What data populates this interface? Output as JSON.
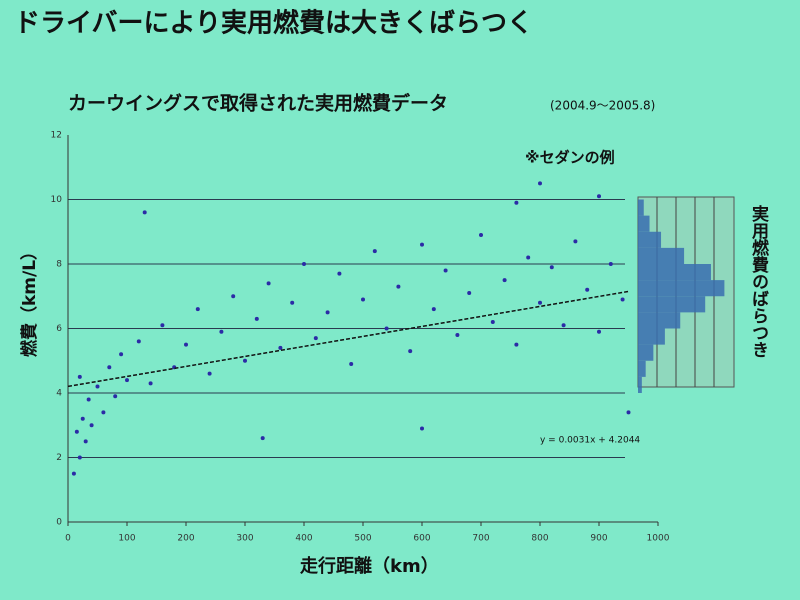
{
  "chart_data": [
    {
      "type": "scatter",
      "title": "ドライバーにより実用燃費は大きくばらつく",
      "subtitle": "カーウイングスで取得された実用燃費データ",
      "period": "(2004.9～2005.8)",
      "note": "※セダンの例",
      "x_label": "走行距離（km）",
      "y_label": "燃費（km/L）",
      "color": "#2b2ba6",
      "xlim": [
        0,
        1000
      ],
      "ylim": [
        0,
        12
      ],
      "xticks": [
        0,
        100,
        200,
        300,
        400,
        500,
        600,
        700,
        800,
        900,
        1000
      ],
      "yticks": [
        0,
        2,
        4,
        6,
        8,
        10,
        12
      ],
      "grid": true,
      "x": [
        10,
        15,
        20,
        25,
        30,
        35,
        40,
        50,
        60,
        70,
        80,
        90,
        100,
        120,
        140,
        160,
        180,
        200,
        220,
        240,
        260,
        280,
        300,
        320,
        340,
        360,
        380,
        400,
        420,
        440,
        460,
        480,
        500,
        520,
        540,
        560,
        580,
        600,
        620,
        640,
        660,
        680,
        700,
        720,
        740,
        760,
        780,
        800,
        820,
        840,
        860,
        880,
        900,
        920,
        940,
        130,
        800,
        950,
        330,
        20,
        760,
        600,
        900
      ],
      "y": [
        1.5,
        2.8,
        2.0,
        3.2,
        2.5,
        3.8,
        3.0,
        4.2,
        3.4,
        4.8,
        3.9,
        5.2,
        4.4,
        5.6,
        4.3,
        6.1,
        4.8,
        5.5,
        6.6,
        4.6,
        5.9,
        7.0,
        5.0,
        6.3,
        7.4,
        5.4,
        6.8,
        8.0,
        5.7,
        6.5,
        7.7,
        4.9,
        6.9,
        8.4,
        6.0,
        7.3,
        5.3,
        8.6,
        6.6,
        7.8,
        5.8,
        7.1,
        8.9,
        6.2,
        7.5,
        5.5,
        8.2,
        6.8,
        7.9,
        6.1,
        8.7,
        7.2,
        5.9,
        8.0,
        6.9,
        9.6,
        10.5,
        3.4,
        2.6,
        4.5,
        9.9,
        2.9,
        10.1
      ],
      "trendline": {
        "slope": 0.0031,
        "intercept": 4.2044,
        "label": "y = 0.0031x + 4.2044",
        "xlim": [
          0,
          950
        ]
      }
    },
    {
      "type": "histogram",
      "title": "実用燃費のばらつき",
      "color": "#3a6fb0",
      "bins": [
        4.0,
        4.5,
        5.0,
        5.5,
        6.0,
        6.5,
        7.0,
        7.5,
        8.0,
        8.5,
        9.0,
        9.5,
        10.0
      ],
      "counts": [
        2,
        4,
        8,
        14,
        22,
        35,
        45,
        38,
        24,
        12,
        6,
        3
      ],
      "xlim": [
        0,
        50
      ]
    }
  ]
}
